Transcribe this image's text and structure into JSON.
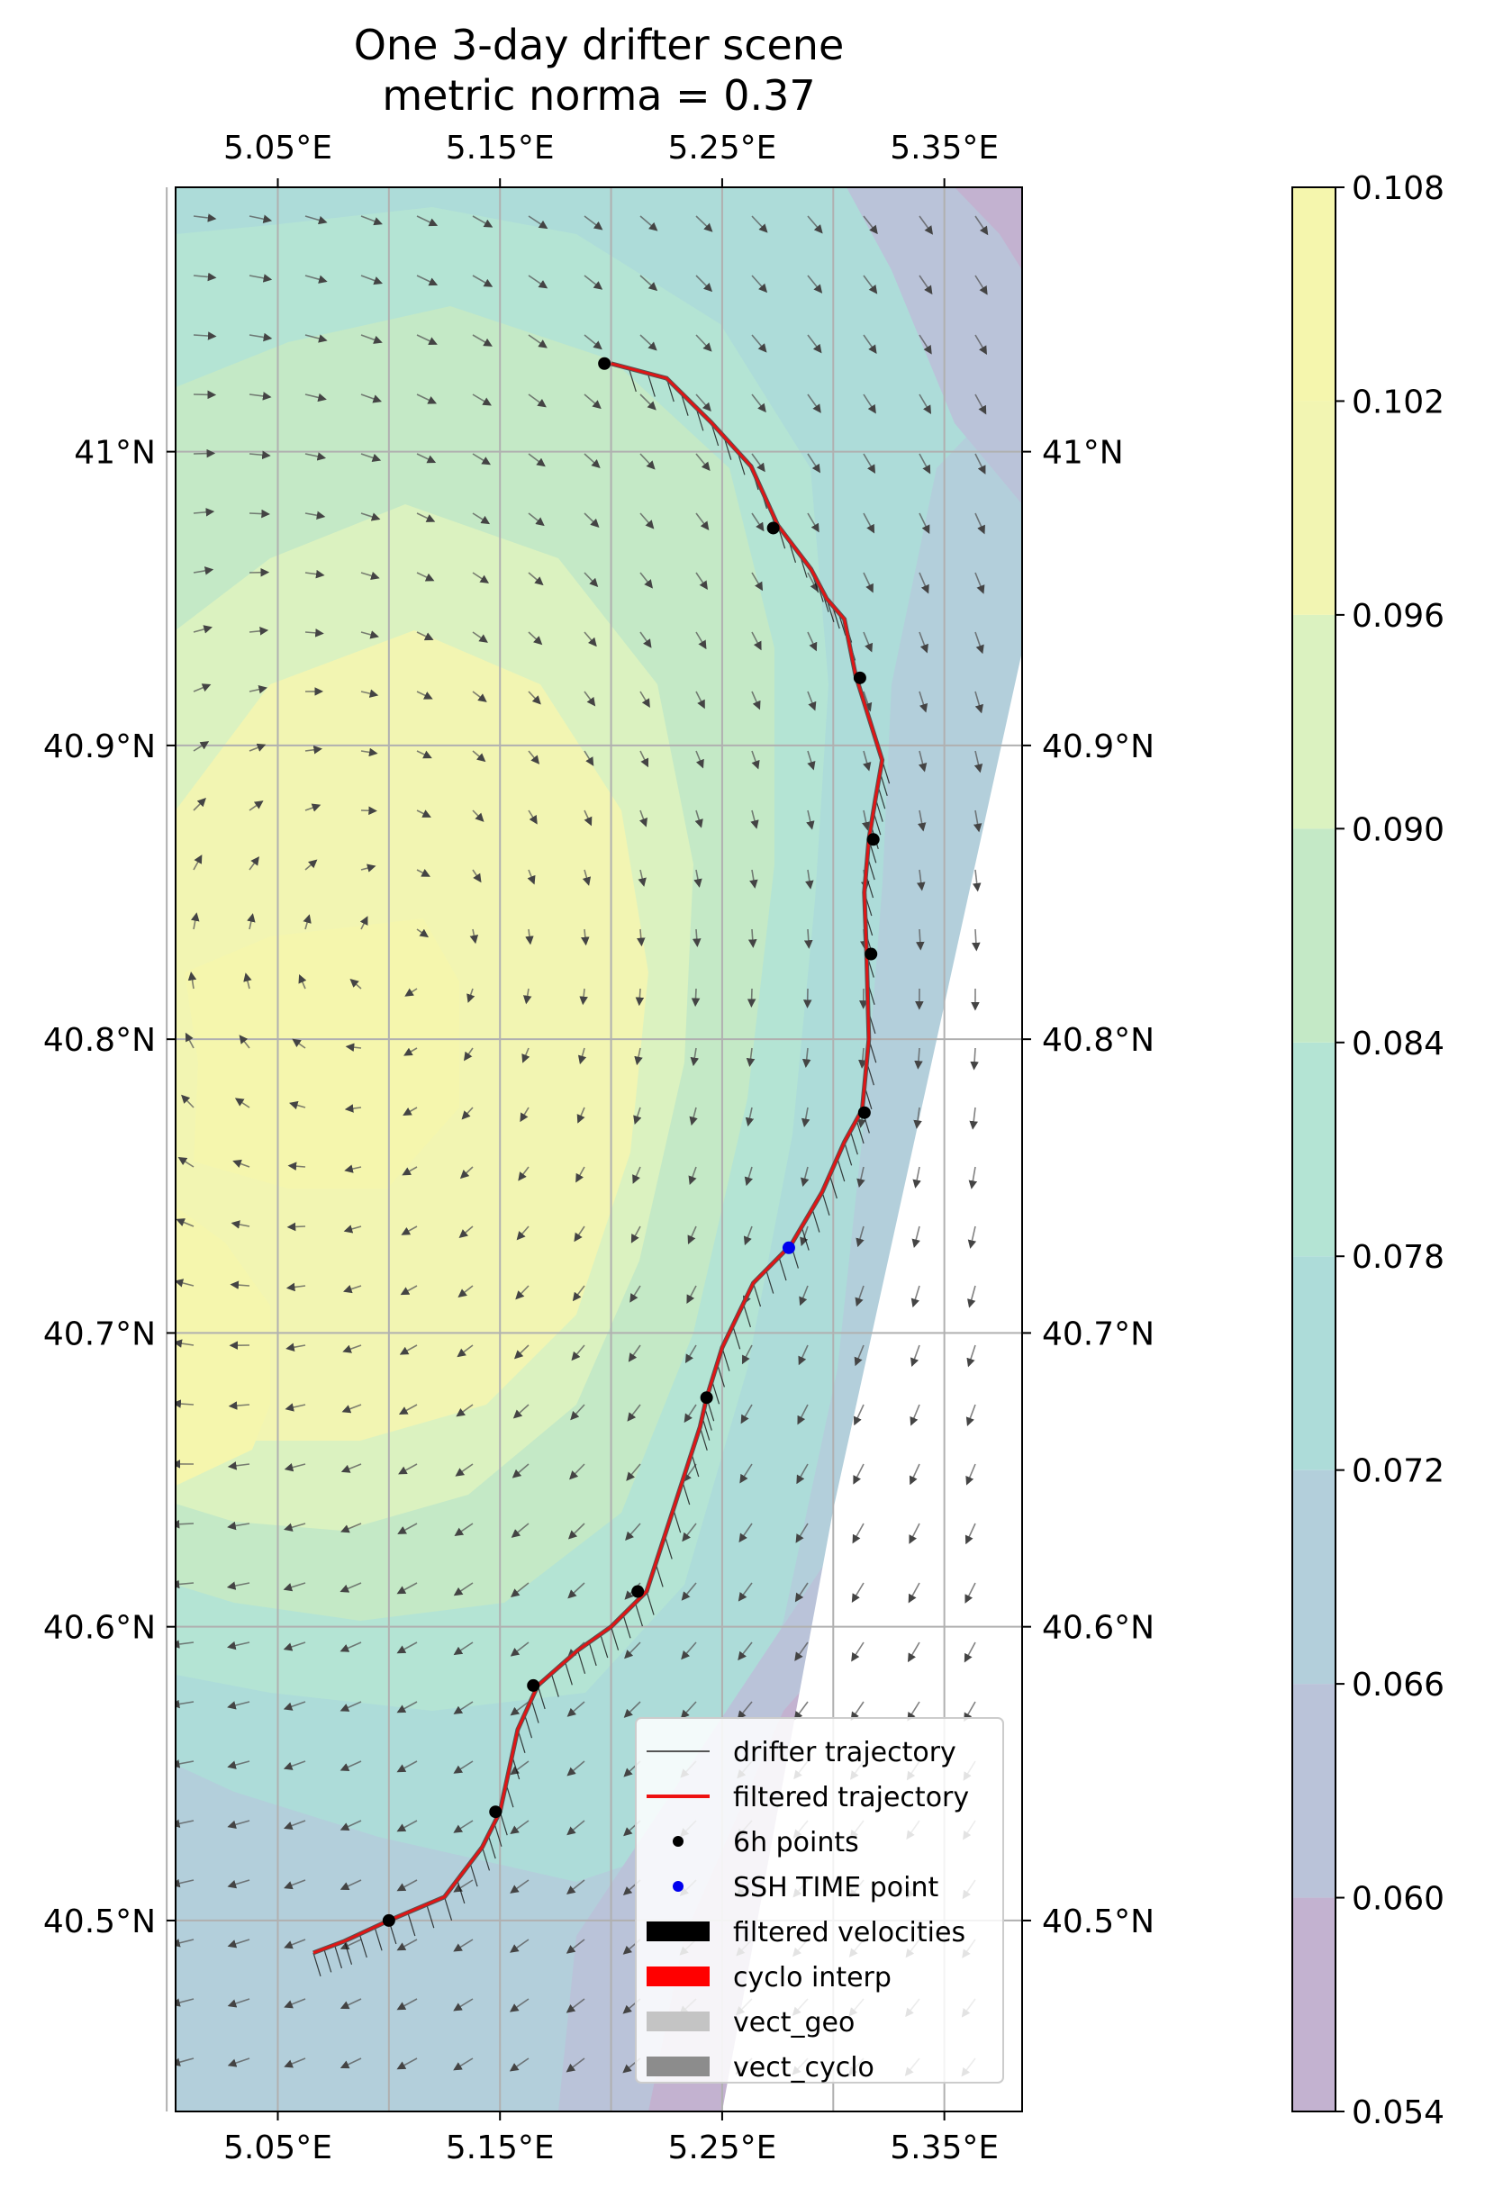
{
  "chart_data": {
    "type": "map",
    "title": "One 3-day drifter scene",
    "subtitle": "metric norma = 0.37",
    "x_axis": {
      "label": "",
      "lim": [
        5.004,
        5.385
      ],
      "ticks": [
        5.05,
        5.15,
        5.25,
        5.35
      ],
      "tick_labels": [
        "5.05°E",
        "5.15°E",
        "5.25°E",
        "5.35°E"
      ],
      "placement": "top and bottom"
    },
    "y_axis": {
      "label": "",
      "lim": [
        40.435,
        41.09
      ],
      "ticks": [
        40.5,
        40.6,
        40.7,
        40.8,
        40.9,
        41.0
      ],
      "tick_labels": [
        "40.5°N",
        "40.6°N",
        "40.7°N",
        "40.8°N",
        "40.9°N",
        "41°N"
      ],
      "placement": "left and right"
    },
    "grid": true,
    "colorbar": {
      "levels": [
        0.054,
        0.06,
        0.066,
        0.072,
        0.078,
        0.084,
        0.09,
        0.096,
        0.102,
        0.108
      ],
      "tick_labels": [
        "0.054",
        "0.060",
        "0.066",
        "0.072",
        "0.078",
        "0.084",
        "0.090",
        "0.096",
        "0.102",
        "0.108"
      ],
      "colors": [
        "#c3b2d0",
        "#bac3d9",
        "#b3cfdb",
        "#addcd9",
        "#b4e4d4",
        "#c4e9c6",
        "#dbf2c0",
        "#f2f5b2",
        "#f5f6ad"
      ],
      "colormap": "viridis (alpha ~0.3)"
    },
    "drifter_trajectory": [
      [
        5.066,
        40.489
      ],
      [
        5.08,
        40.493
      ],
      [
        5.1,
        40.5
      ],
      [
        5.125,
        40.508
      ],
      [
        5.142,
        40.525
      ],
      [
        5.15,
        40.537
      ],
      [
        5.158,
        40.565
      ],
      [
        5.167,
        40.58
      ],
      [
        5.185,
        40.592
      ],
      [
        5.2,
        40.6
      ],
      [
        5.216,
        40.612
      ],
      [
        5.228,
        40.64
      ],
      [
        5.24,
        40.668
      ],
      [
        5.243,
        40.678
      ],
      [
        5.25,
        40.695
      ],
      [
        5.264,
        40.717
      ],
      [
        5.281,
        40.73
      ],
      [
        5.295,
        40.748
      ],
      [
        5.305,
        40.765
      ],
      [
        5.313,
        40.776
      ],
      [
        5.316,
        40.8
      ],
      [
        5.315,
        40.829
      ],
      [
        5.314,
        40.85
      ],
      [
        5.316,
        40.868
      ],
      [
        5.319,
        40.882
      ],
      [
        5.322,
        40.895
      ],
      [
        5.31,
        40.924
      ],
      [
        5.305,
        40.943
      ],
      [
        5.297,
        40.95
      ],
      [
        5.29,
        40.96
      ],
      [
        5.275,
        40.975
      ],
      [
        5.263,
        40.995
      ],
      [
        5.245,
        41.01
      ],
      [
        5.225,
        41.025
      ],
      [
        5.2,
        41.03
      ]
    ],
    "six_hour_points": [
      [
        5.197,
        41.03
      ],
      [
        5.273,
        40.974
      ],
      [
        5.312,
        40.923
      ],
      [
        5.318,
        40.868
      ],
      [
        5.317,
        40.829
      ],
      [
        5.314,
        40.775
      ],
      [
        5.243,
        40.678
      ],
      [
        5.212,
        40.612
      ],
      [
        5.165,
        40.58
      ],
      [
        5.148,
        40.537
      ],
      [
        5.1,
        40.5
      ]
    ],
    "ssh_time_point": [
      5.28,
      40.729
    ],
    "legend": {
      "placement": "lower right",
      "entries": [
        "drifter trajectory",
        "filtered trajectory",
        "6h points",
        "SSH TIME point",
        "filtered velocities",
        "cyclo interp",
        "vect_geo",
        "vect_cyclo"
      ],
      "colors": [
        "#555555",
        "#ee1111",
        "#000000",
        "#0000ee",
        "#000000",
        "#ff0000",
        "#c4c4c4",
        "#8c8c8c"
      ]
    }
  }
}
